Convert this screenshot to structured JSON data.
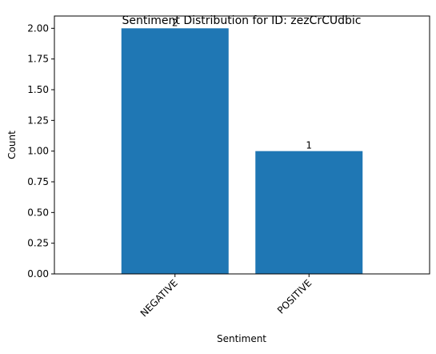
{
  "chart_data": {
    "type": "bar",
    "title": "Sentiment Distribution for ID: zezCrCUdbic",
    "xlabel": "Sentiment",
    "ylabel": "Count",
    "categories": [
      "NEGATIVE",
      "POSITIVE"
    ],
    "values": [
      2,
      1
    ],
    "data_labels": [
      "2",
      "1"
    ],
    "ylim": [
      0,
      2.1
    ],
    "yticks": [
      0.0,
      0.25,
      0.5,
      0.75,
      1.0,
      1.25,
      1.5,
      1.75,
      2.0
    ],
    "ytick_labels": [
      "0.00",
      "0.25",
      "0.50",
      "0.75",
      "1.00",
      "1.25",
      "1.50",
      "1.75",
      "2.00"
    ],
    "xtick_rotation_deg": 45,
    "bar_color": "#1f77b4",
    "grid": false,
    "legend": "none"
  }
}
